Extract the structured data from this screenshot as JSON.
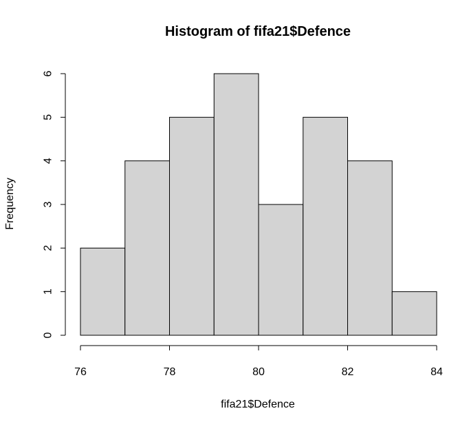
{
  "chart_data": {
    "type": "bar",
    "title": "Histogram of fifa21$Defence",
    "xlabel": "fifa21$Defence",
    "ylabel": "Frequency",
    "bins": [
      {
        "start": 76,
        "end": 77,
        "count": 2
      },
      {
        "start": 77,
        "end": 78,
        "count": 4
      },
      {
        "start": 78,
        "end": 79,
        "count": 5
      },
      {
        "start": 79,
        "end": 80,
        "count": 6
      },
      {
        "start": 80,
        "end": 81,
        "count": 3
      },
      {
        "start": 81,
        "end": 82,
        "count": 5
      },
      {
        "start": 82,
        "end": 83,
        "count": 4
      },
      {
        "start": 83,
        "end": 84,
        "count": 1
      }
    ],
    "xlim": [
      76,
      84
    ],
    "ylim": [
      0,
      6
    ],
    "x_ticks": [
      "76",
      "78",
      "80",
      "82",
      "84"
    ],
    "y_ticks": [
      "0",
      "1",
      "2",
      "3",
      "4",
      "5",
      "6"
    ],
    "bar_color": "#d3d3d3",
    "grid": false
  }
}
